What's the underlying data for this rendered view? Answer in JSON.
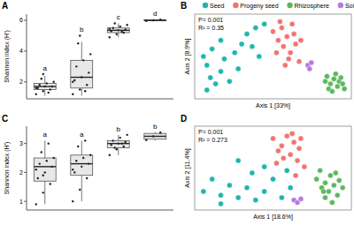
{
  "chart_data": [
    {
      "type": "box",
      "title": "A",
      "ylabel": "Shannon index (H')",
      "tick_labels": "y",
      "ylim": [
        0.9,
        6.4
      ],
      "yticks": [
        2,
        4,
        6
      ],
      "stats": [
        {
          "low": 1.1,
          "q1": 1.5,
          "median": 1.7,
          "q3": 1.9,
          "high": 2.4
        },
        {
          "low": 1.1,
          "q1": 1.6,
          "median": 2.3,
          "q3": 3.4,
          "high": 4.6
        },
        {
          "low": 4.9,
          "q1": 5.2,
          "median": 5.35,
          "q3": 5.5,
          "high": 5.8
        },
        {
          "low": 5.95,
          "q1": 5.98,
          "median": 6.0,
          "q3": 6.02,
          "high": 6.05
        }
      ],
      "points": [
        [
          1.2,
          1.4,
          1.5,
          1.6,
          1.7,
          1.7,
          1.8,
          1.9,
          2.0,
          2.2,
          1.3,
          1.6,
          2.5
        ],
        [
          1.2,
          1.5,
          1.8,
          2.1,
          2.3,
          2.6,
          3.0,
          3.4,
          3.8,
          4.5,
          1.4,
          2.0,
          5.0
        ],
        [
          4.9,
          5.1,
          5.2,
          5.3,
          5.35,
          5.4,
          5.5,
          5.6,
          5.7,
          5.8,
          5.25,
          5.45
        ],
        [
          5.96,
          6.0,
          6.04
        ]
      ],
      "letters": [
        "a",
        "b",
        "c",
        "d"
      ]
    },
    {
      "type": "scatter",
      "title": "B",
      "xlabel": "Axis 1 [33%]",
      "ylabel": "Axis 2 [8.9%]",
      "annotations": [
        "P= 0.001",
        "R² = 0.35"
      ],
      "tick_labels": false,
      "legend": "top",
      "xlim": [
        -0.45,
        0.45
      ],
      "ylim": [
        -0.32,
        0.36
      ],
      "series": [
        {
          "name": "Seed",
          "color": "#1fb5ad",
          "x": [
            -0.38,
            -0.4,
            -0.36,
            -0.33,
            -0.3,
            -0.35,
            -0.28,
            -0.25,
            -0.22,
            -0.2,
            -0.18,
            -0.15,
            -0.1,
            -0.05,
            -0.12,
            -0.38,
            -0.3,
            -0.08
          ],
          "values": [
            -0.05,
            0.02,
            -0.15,
            -0.2,
            -0.1,
            0.08,
            0.0,
            -0.18,
            0.05,
            -0.08,
            0.12,
            0.2,
            0.25,
            0.28,
            0.1,
            -0.25,
            0.15,
            0.02
          ]
        },
        {
          "name": "Progeny seed",
          "color": "#f07470",
          "x": [
            0.0,
            0.03,
            0.05,
            0.06,
            0.08,
            0.1,
            0.12,
            0.13,
            0.15,
            0.02,
            0.07,
            0.11,
            0.16,
            0.04,
            0.09
          ],
          "values": [
            0.22,
            0.15,
            0.25,
            0.1,
            0.18,
            0.05,
            0.2,
            0.12,
            -0.02,
            0.05,
            -0.05,
            0.28,
            0.15,
            0.3,
            0.0
          ]
        },
        {
          "name": "Rhizosphere",
          "color": "#5cb85c",
          "x": [
            0.3,
            0.33,
            0.35,
            0.37,
            0.38,
            0.32,
            0.36,
            0.4,
            0.34,
            0.39,
            0.31,
            0.41
          ],
          "values": [
            -0.18,
            -0.2,
            -0.16,
            -0.22,
            -0.18,
            -0.24,
            -0.12,
            -0.2,
            -0.26,
            -0.15,
            -0.14,
            -0.24
          ]
        },
        {
          "name": "Soil",
          "color": "#b57be0",
          "x": [
            0.2,
            0.21,
            0.22
          ],
          "values": [
            -0.05,
            -0.08,
            -0.03
          ]
        }
      ]
    },
    {
      "type": "box",
      "title": "C",
      "ylabel": "Shannon index (H')",
      "tick_labels": "y",
      "ylim": [
        0.7,
        3.6
      ],
      "yticks": [
        1,
        2,
        3
      ],
      "stats": [
        {
          "low": 0.9,
          "q1": 1.7,
          "median": 2.2,
          "q3": 2.5,
          "high": 3.1
        },
        {
          "low": 1.0,
          "q1": 1.9,
          "median": 2.3,
          "q3": 2.6,
          "high": 3.1
        },
        {
          "low": 2.6,
          "q1": 2.85,
          "median": 3.0,
          "q3": 3.1,
          "high": 3.3
        },
        {
          "low": 3.1,
          "q1": 3.15,
          "median": 3.25,
          "q3": 3.35,
          "high": 3.4
        }
      ],
      "points": [
        [
          0.9,
          1.3,
          1.6,
          1.8,
          2.0,
          2.2,
          2.3,
          2.4,
          2.5,
          2.7,
          3.0,
          2.1,
          1.9
        ],
        [
          1.0,
          1.4,
          1.8,
          2.0,
          2.2,
          2.3,
          2.4,
          2.5,
          2.6,
          2.9,
          3.1,
          2.1
        ],
        [
          2.6,
          2.8,
          2.9,
          2.95,
          3.0,
          3.05,
          3.1,
          3.2,
          3.3,
          2.85,
          3.0
        ],
        [
          3.12,
          3.25,
          3.38
        ]
      ],
      "letters": [
        "a",
        "a",
        "b",
        "b"
      ]
    },
    {
      "type": "scatter",
      "title": "D",
      "xlabel": "Axis 1 [18.6%]",
      "ylabel": "Axis 2 [11.4%]",
      "annotations": [
        "P= 0.001",
        "R² = 0.273"
      ],
      "tick_labels": false,
      "xlim": [
        -0.45,
        0.45
      ],
      "ylim": [
        -0.3,
        0.38
      ],
      "series": [
        {
          "color": "#1fb5ad",
          "x": [
            -0.4,
            -0.35,
            -0.3,
            -0.25,
            -0.2,
            -0.15,
            -0.1,
            -0.05,
            0.0,
            -0.05,
            -0.3,
            0.05,
            -0.12,
            0.1,
            0.08,
            -0.2
          ],
          "values": [
            -0.15,
            -0.05,
            -0.18,
            -0.1,
            -0.2,
            -0.12,
            -0.22,
            -0.15,
            -0.05,
            0.05,
            -0.25,
            -0.2,
            0.0,
            -0.12,
            0.02,
            0.1
          ]
        },
        {
          "color": "#f07470",
          "x": [
            0.0,
            0.05,
            0.08,
            0.1,
            0.12,
            0.14,
            0.06,
            0.15,
            0.18,
            0.03,
            0.11,
            0.16,
            0.02,
            0.13
          ],
          "values": [
            0.28,
            0.22,
            0.3,
            0.15,
            0.25,
            0.1,
            0.12,
            0.2,
            0.05,
            0.18,
            0.32,
            0.28,
            0.08,
            -0.02
          ]
        },
        {
          "color": "#5cb85c",
          "x": [
            0.25,
            0.28,
            0.3,
            0.32,
            0.35,
            0.33,
            0.37,
            0.38,
            0.3,
            0.4,
            0.27,
            0.36,
            0.34,
            0.29
          ],
          "values": [
            -0.05,
            -0.12,
            -0.08,
            -0.15,
            -0.1,
            -0.02,
            -0.18,
            -0.06,
            -0.2,
            -0.12,
            0.02,
            0.0,
            -0.24,
            -0.15
          ]
        },
        {
          "color": "#b57be0",
          "x": [
            0.12,
            0.14,
            0.16
          ],
          "values": [
            -0.22,
            -0.24,
            -0.21
          ]
        }
      ]
    }
  ]
}
